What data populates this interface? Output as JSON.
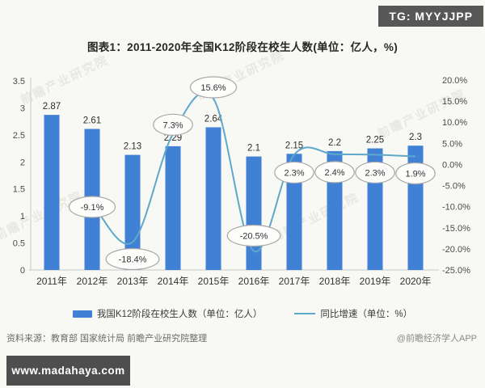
{
  "badge": {
    "text": "TG: MYYJJPP"
  },
  "title": "图表1：2011-2020年全国K12阶段在校生人数(单位：亿人，%)",
  "watermark": {
    "text": "前瞻产业研究院"
  },
  "chart_data": {
    "type": "bar",
    "categories": [
      "2011年",
      "2012年",
      "2013年",
      "2014年",
      "2015年",
      "2016年",
      "2017年",
      "2018年",
      "2019年",
      "2020年"
    ],
    "series": [
      {
        "name": "我国K12阶段在校生人数（单位：亿人）",
        "type": "bar",
        "axis": "left",
        "color": "#4181d5",
        "values": [
          2.87,
          2.61,
          2.13,
          2.29,
          2.64,
          2.1,
          2.15,
          2.2,
          2.25,
          2.3
        ],
        "labels": [
          "2.87",
          "2.61",
          "2.13",
          "2.29",
          "2.64",
          "2.1",
          "2.15",
          "2.2",
          "2.25",
          "2.3"
        ]
      },
      {
        "name": "同比增速（单位：%）",
        "type": "line",
        "axis": "right",
        "color": "#5ea8c9",
        "values": [
          null,
          -9.1,
          -18.4,
          7.3,
          15.6,
          -20.5,
          2.3,
          2.4,
          2.3,
          1.9
        ],
        "labels": [
          null,
          "-9.1%",
          "-18.4%",
          "7.3%",
          "15.6%",
          "-20.5%",
          "2.3%",
          "2.4%",
          "2.3%",
          "1.9%"
        ]
      }
    ],
    "left_axis": {
      "min": 0,
      "max": 3.5,
      "ticks": [
        3.5,
        3,
        2.5,
        2,
        1.5,
        1,
        0.5,
        0
      ]
    },
    "right_axis": {
      "min": -25,
      "max": 20,
      "ticks": [
        20,
        15,
        10,
        5,
        0,
        -5,
        -10,
        -15,
        -20,
        -25
      ],
      "suffix": "%"
    },
    "grid": false,
    "legend_position": "bottom"
  },
  "legend": [
    {
      "label": "我国K12阶段在校生人数（单位：亿人）"
    },
    {
      "label": "同比增速（单位：%）"
    }
  ],
  "source_left": "资料来源：教育部 国家统计局 前瞻产业研究院整理",
  "source_right": "@前瞻经济学人APP",
  "footer_badge": "www.madahaya.com"
}
